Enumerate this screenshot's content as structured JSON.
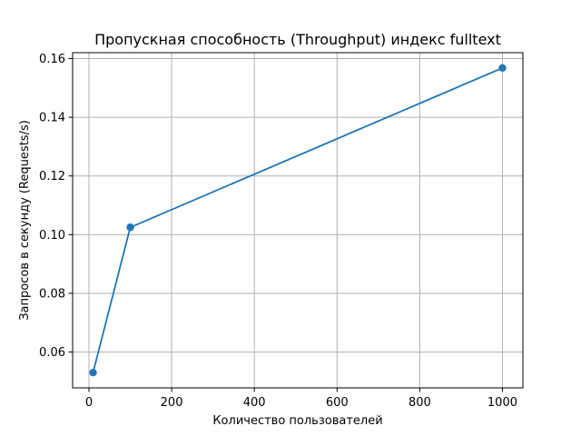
{
  "chart_data": {
    "type": "line",
    "title": "Пропускная способность (Throughput) индекс fulltext",
    "xlabel": "Количество пользователей",
    "ylabel": "Запросов в секунду (Requests/s)",
    "x": [
      10,
      100,
      1000
    ],
    "series": [
      {
        "values": [
          0.053,
          0.1025,
          0.1568
        ],
        "color": "#1f77b4",
        "marker": "circle"
      }
    ],
    "xlim": [
      -39.5,
      1049.5
    ],
    "ylim": [
      0.0478,
      0.162
    ],
    "xticks": [
      0,
      200,
      400,
      600,
      800,
      1000
    ],
    "xtick_labels": [
      "0",
      "200",
      "400",
      "600",
      "800",
      "1000"
    ],
    "yticks": [
      0.06,
      0.08,
      0.1,
      0.12,
      0.14,
      0.16
    ],
    "ytick_labels": [
      "0.06",
      "0.08",
      "0.10",
      "0.12",
      "0.14",
      "0.16"
    ],
    "grid": true
  }
}
